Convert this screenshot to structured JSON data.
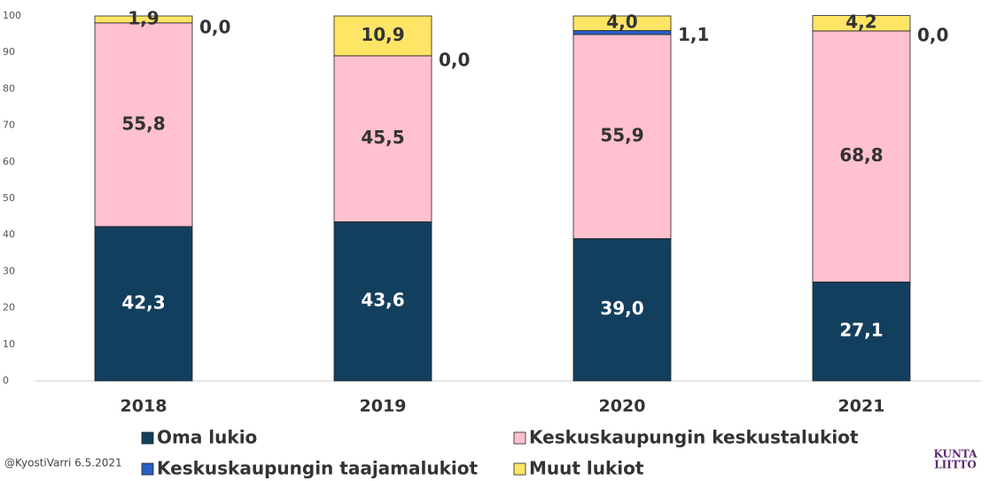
{
  "chart_data": {
    "type": "stacked_bar",
    "categories": [
      "2018",
      "2019",
      "2020",
      "2021"
    ],
    "series": [
      {
        "name": "Oma lukio",
        "color": "#133f5e",
        "values": [
          42.3,
          43.6,
          39.0,
          27.1
        ],
        "value_labels": [
          "42,3",
          "43,6",
          "39,0",
          "27,1"
        ]
      },
      {
        "name": "Keskuskaupungin keskustalukiot",
        "color": "#ffc0cf",
        "values": [
          55.8,
          45.5,
          55.9,
          68.8
        ],
        "value_labels": [
          "55,8",
          "45,5",
          "55,9",
          "68,8"
        ]
      },
      {
        "name": "Keskuskaupungin taajamalukiot",
        "color": "#2a5fc4",
        "values": [
          0.0,
          0.0,
          1.1,
          0.0
        ],
        "value_labels": [
          "0,0",
          "0,0",
          "1,1",
          "0,0"
        ]
      },
      {
        "name": "Muut lukiot",
        "color": "#ffe566",
        "values": [
          1.9,
          10.9,
          4.0,
          4.2
        ],
        "value_labels": [
          "1,9",
          "10,9",
          "4,0",
          "4,2"
        ]
      }
    ],
    "ylim": [
      0,
      100
    ],
    "yticks": [
      0,
      10,
      20,
      30,
      40,
      50,
      60,
      70,
      80,
      90,
      100
    ],
    "source": "@KyostiVarri 6.5.2021",
    "logo": [
      "KUNTA",
      "LIITTO"
    ]
  }
}
